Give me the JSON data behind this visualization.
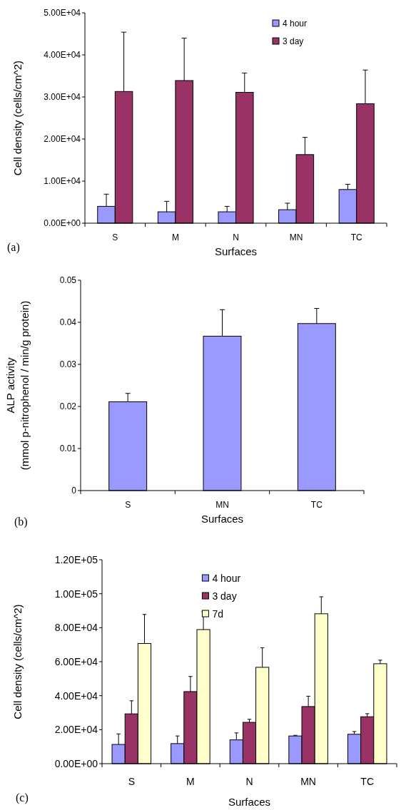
{
  "chart_data": [
    {
      "type": "bar",
      "xlabel": "Surfaces",
      "ylabel": "Cell density (cells/cm^2)",
      "categories": [
        "S",
        "M",
        "N",
        "MN",
        "TC"
      ],
      "series": [
        {
          "name": "4 hour",
          "color": "#9999ff",
          "values": [
            4000,
            2700,
            2700,
            3200,
            8000
          ],
          "errors": [
            [
              4000,
              6900
            ],
            [
              2700,
              5200
            ],
            [
              2700,
              4000
            ],
            [
              3200,
              4750
            ],
            [
              8000,
              9250
            ]
          ]
        },
        {
          "name": "3 day",
          "color": "#993366",
          "values": [
            31300,
            33900,
            31100,
            16300,
            28400
          ],
          "errors": [
            [
              31300,
              45400
            ],
            [
              33900,
              44000
            ],
            [
              31100,
              35700
            ],
            [
              16300,
              20400
            ],
            [
              28400,
              36400
            ]
          ]
        }
      ],
      "ylim": [
        0,
        50000
      ],
      "yticks": [
        {
          "value": 0,
          "label": "0.00E+00"
        },
        {
          "value": 10000,
          "label": "1.00E+04"
        },
        {
          "value": 20000,
          "label": "2.00E+04"
        },
        {
          "value": 30000,
          "label": "3.00E+04"
        },
        {
          "value": 40000,
          "label": "4.00E+04"
        },
        {
          "value": 50000,
          "label": "5.00E+04"
        }
      ],
      "legend": "top right",
      "grid": false,
      "annotations": [
        "(a)"
      ]
    },
    {
      "type": "bar",
      "xlabel": "Surfaces",
      "ylabel": "ALP activity\n(mmol p-nitrophenol / min/g protein)",
      "categories": [
        "S",
        "MN",
        "TC"
      ],
      "series": [
        {
          "color": "#9999ff",
          "values": [
            0.0211,
            0.0367,
            0.0397
          ],
          "errors": [
            [
              0.0211,
              0.0231
            ],
            [
              0.0367,
              0.043
            ],
            [
              0.0397,
              0.0433
            ]
          ]
        }
      ],
      "ylim": [
        0,
        0.05
      ],
      "yticks": [
        0,
        0.01,
        0.02,
        0.03,
        0.04,
        0.05
      ],
      "legend": false,
      "grid": false,
      "annotations": [
        "(b)"
      ]
    },
    {
      "type": "bar",
      "xlabel": "Surfaces",
      "ylabel": "Cell density (cells/cm^2)",
      "categories": [
        "S",
        "M",
        "N",
        "MN",
        "TC"
      ],
      "series": [
        {
          "name": "4 hour",
          "color": "#9999ff",
          "values": [
            11300,
            11800,
            14000,
            16300,
            17300
          ],
          "errors": [
            [
              11300,
              17500
            ],
            [
              11800,
              16300
            ],
            [
              14000,
              18100
            ],
            [
              16300,
              16700
            ],
            [
              17300,
              18900
            ]
          ]
        },
        {
          "name": "3 day",
          "color": "#993366",
          "values": [
            29300,
            42400,
            24300,
            33600,
            27600
          ],
          "errors": [
            [
              29300,
              37000
            ],
            [
              42400,
              51300
            ],
            [
              24300,
              26100
            ],
            [
              33600,
              39700
            ],
            [
              27600,
              29400
            ]
          ]
        },
        {
          "name": "7d",
          "color": "#ffffcc",
          "values": [
            70700,
            78900,
            56700,
            88200,
            58800
          ],
          "errors": [
            [
              70700,
              87800
            ],
            [
              78900,
              89400
            ],
            [
              56700,
              68200
            ],
            [
              88200,
              98200
            ],
            [
              58800,
              60900
            ]
          ]
        }
      ],
      "ylim": [
        0,
        120000
      ],
      "yticks": [
        {
          "value": 0,
          "label": "0.00E+00"
        },
        {
          "value": 20000,
          "label": "2.00E+04"
        },
        {
          "value": 40000,
          "label": "4.00E+04"
        },
        {
          "value": 60000,
          "label": "6.00E+04"
        },
        {
          "value": 80000,
          "label": "8.00E+04"
        },
        {
          "value": 100000,
          "label": "1.00E+05"
        },
        {
          "value": 120000,
          "label": "1.20E+05"
        }
      ],
      "legend": "top",
      "grid": false,
      "annotations": [
        "(c)"
      ]
    }
  ]
}
